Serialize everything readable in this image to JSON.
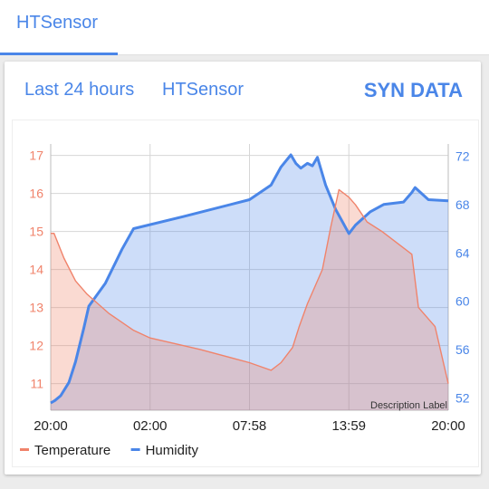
{
  "tabs": [
    {
      "label": "HTSensor",
      "active": true
    }
  ],
  "card": {
    "period_label": "Last 24 hours",
    "sensor_label": "HTSensor",
    "sync_label": "SYN DATA"
  },
  "colors": {
    "accent": "#4a86e8",
    "temperature": "#f0836b",
    "humidity": "#4a86e8"
  },
  "chart_data": {
    "type": "area",
    "x_tick_labels": [
      "20:00",
      "02:00",
      "07:58",
      "13:59",
      "20:00"
    ],
    "x_range": [
      0,
      24
    ],
    "description_label": "Description Label",
    "grid": true,
    "legend_position": "bottom-left",
    "left_axis": {
      "ylim": [
        10.3,
        17.3
      ],
      "ticks": [
        11,
        12,
        13,
        14,
        15,
        16,
        17
      ],
      "series": "Temperature"
    },
    "right_axis": {
      "ylim": [
        51,
        73
      ],
      "ticks": [
        52,
        56,
        60,
        64,
        68,
        72
      ],
      "series": "Humidity"
    },
    "series": [
      {
        "name": "Temperature",
        "axis": "left",
        "color": "#f0836b",
        "x": [
          0,
          0.2,
          0.8,
          1.5,
          2.2,
          3.5,
          5.0,
          6.0,
          9.0,
          12.0,
          13.3,
          13.9,
          14.6,
          15.0,
          15.5,
          16.0,
          16.4,
          16.9,
          17.4,
          18.0,
          18.4,
          19.1,
          20.0,
          21.8,
          22.2,
          23.2,
          24.0
        ],
        "values": [
          14.95,
          14.95,
          14.3,
          13.7,
          13.35,
          12.85,
          12.4,
          12.2,
          11.9,
          11.55,
          11.35,
          11.55,
          11.95,
          12.5,
          13.1,
          13.6,
          14.0,
          15.1,
          16.1,
          15.9,
          15.7,
          15.25,
          15.0,
          14.4,
          13.0,
          12.5,
          11.0
        ]
      },
      {
        "name": "Humidity",
        "axis": "right",
        "color": "#4a86e8",
        "x": [
          0,
          0.25,
          0.6,
          1.1,
          1.5,
          2.0,
          2.3,
          3.3,
          4.3,
          5.0,
          8.0,
          12.0,
          13.3,
          13.9,
          14.5,
          14.8,
          15.1,
          15.5,
          15.8,
          16.1,
          16.6,
          17.2,
          18.0,
          18.4,
          19.3,
          20.1,
          21.3,
          21.8,
          22.0,
          22.8,
          24.0
        ],
        "values": [
          51.6,
          51.8,
          52.2,
          53.3,
          55.0,
          57.8,
          59.6,
          61.5,
          64.3,
          66.0,
          67.0,
          68.4,
          69.6,
          71.1,
          72.1,
          71.4,
          71.0,
          71.4,
          71.2,
          71.9,
          69.6,
          67.6,
          65.6,
          66.3,
          67.4,
          68.0,
          68.2,
          69.0,
          69.4,
          68.4,
          68.3
        ]
      }
    ]
  }
}
